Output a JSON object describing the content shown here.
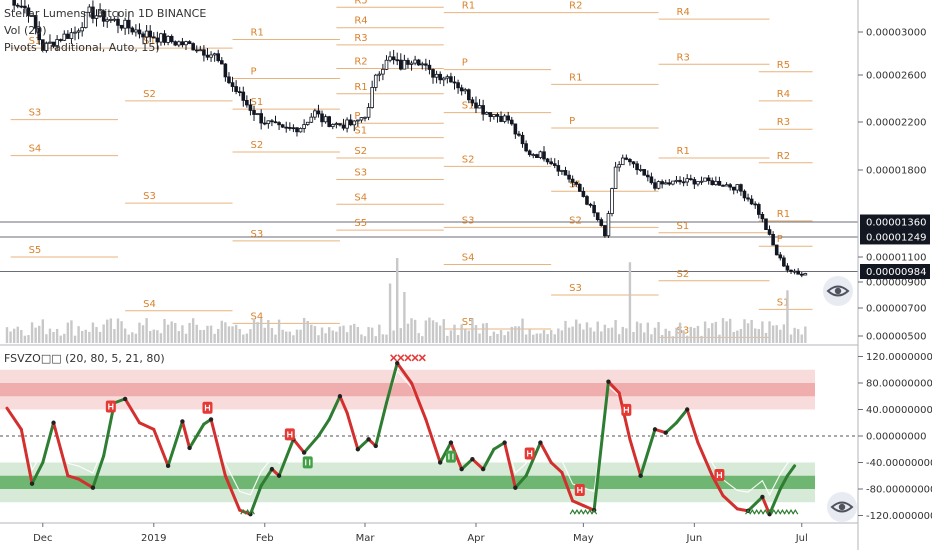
{
  "legend": {
    "line1": "Stellar Lumens / Bitcoin  1D  BINANCE",
    "line2": "Vol (20)",
    "line3": "Pivots (Traditional, Auto, 15)",
    "osc": "FSVZO□□ (20, 80, 5, 21, 80)"
  },
  "colors": {
    "up_candle": "#ffffff",
    "down_candle": "#131722",
    "pivot": "#d9822b",
    "volume": "#c8c8c8",
    "osc_up": "#2e7d32",
    "osc_down": "#d32f2f",
    "band_red": "#e57373",
    "band_green": "#43a047",
    "sell_tag": "#e53935",
    "buy_tag": "#43a047"
  },
  "icons": {
    "price_eye": "eye-icon",
    "osc_eye": "eye-icon"
  },
  "chart_data": [
    {
      "type": "candlestick",
      "title": "Stellar Lumens / Bitcoin",
      "interval": "1D",
      "exchange": "BINANCE",
      "x_labels": [
        "Dec",
        "2019",
        "Feb",
        "Mar",
        "Apr",
        "May",
        "Jun",
        "Jul"
      ],
      "y_ticks": [
        "0.00003000",
        "0.00002600",
        "0.00002200",
        "0.00001800",
        "0.00001100",
        "0.00000900",
        "0.00000700",
        "0.00000500"
      ],
      "price_tags": [
        {
          "label": "0.00001360",
          "value": 1.36e-05
        },
        {
          "label": "0.00001249",
          "value": 1.249e-05
        },
        {
          "label": "0.00000984",
          "value": 9.84e-06
        }
      ],
      "close_path": [
        {
          "d": 0,
          "c": 3.34e-05
        },
        {
          "d": 6,
          "c": 3.2e-05
        },
        {
          "d": 10,
          "c": 2.85e-05
        },
        {
          "d": 15,
          "c": 2.95e-05
        },
        {
          "d": 19,
          "c": 3e-05
        },
        {
          "d": 23,
          "c": 3.18e-05
        },
        {
          "d": 30,
          "c": 3.1e-05
        },
        {
          "d": 37,
          "c": 3e-05
        },
        {
          "d": 45,
          "c": 2.92e-05
        },
        {
          "d": 52,
          "c": 2.87e-05
        },
        {
          "d": 58,
          "c": 2.78e-05
        },
        {
          "d": 62,
          "c": 2.54e-05
        },
        {
          "d": 67,
          "c": 2.35e-05
        },
        {
          "d": 71,
          "c": 2.22e-05
        },
        {
          "d": 77,
          "c": 2.13e-05
        },
        {
          "d": 82,
          "c": 2.16e-05
        },
        {
          "d": 86,
          "c": 2.28e-05
        },
        {
          "d": 88,
          "c": 2.22e-05
        },
        {
          "d": 92,
          "c": 2.18e-05
        },
        {
          "d": 97,
          "c": 2.18e-05
        },
        {
          "d": 101,
          "c": 2.3e-05
        },
        {
          "d": 103,
          "c": 2.62e-05
        },
        {
          "d": 107,
          "c": 2.75e-05
        },
        {
          "d": 110,
          "c": 2.68e-05
        },
        {
          "d": 114,
          "c": 2.78e-05
        },
        {
          "d": 118,
          "c": 2.62e-05
        },
        {
          "d": 124,
          "c": 2.58e-05
        },
        {
          "d": 128,
          "c": 2.45e-05
        },
        {
          "d": 133,
          "c": 2.3e-05
        },
        {
          "d": 140,
          "c": 2.22e-05
        },
        {
          "d": 145,
          "c": 1.95e-05
        },
        {
          "d": 150,
          "c": 1.92e-05
        },
        {
          "d": 153,
          "c": 1.85e-05
        },
        {
          "d": 157,
          "c": 1.73e-05
        },
        {
          "d": 161,
          "c": 1.58e-05
        },
        {
          "d": 165,
          "c": 1.38e-05
        },
        {
          "d": 167,
          "c": 1.25e-05
        },
        {
          "d": 170,
          "c": 1.8e-05
        },
        {
          "d": 172,
          "c": 1.9e-05
        },
        {
          "d": 176,
          "c": 1.8e-05
        },
        {
          "d": 181,
          "c": 1.67e-05
        },
        {
          "d": 188,
          "c": 1.7e-05
        },
        {
          "d": 193,
          "c": 1.71e-05
        },
        {
          "d": 199,
          "c": 1.69e-05
        },
        {
          "d": 204,
          "c": 1.65e-05
        },
        {
          "d": 209,
          "c": 1.5e-05
        },
        {
          "d": 213,
          "c": 1.25e-05
        },
        {
          "d": 215,
          "c": 1.12e-05
        },
        {
          "d": 218,
          "c": 1e-05
        },
        {
          "d": 221,
          "c": 9.6e-06
        },
        {
          "d": 223,
          "c": 9.8e-06
        }
      ],
      "volume_spikes": [
        {
          "d": 109,
          "v": 1.0
        },
        {
          "d": 174,
          "v": 0.95
        },
        {
          "d": 218,
          "v": 0.62
        },
        {
          "d": 107,
          "v": 0.7
        },
        {
          "d": 111,
          "v": 0.6
        }
      ],
      "pivots": [
        {
          "label": "P",
          "price": 3.4e-05,
          "d1": 33,
          "d2": 63
        },
        {
          "label": "S1",
          "price": 2.85e-05,
          "d1": 1,
          "d2": 31
        },
        {
          "label": "S3",
          "price": 2.22e-05,
          "d1": 1,
          "d2": 31
        },
        {
          "label": "S4",
          "price": 1.92e-05,
          "d1": 1,
          "d2": 31
        },
        {
          "label": "S5",
          "price": 1.1e-05,
          "d1": 1,
          "d2": 31
        },
        {
          "label": "S1",
          "price": 2.85e-05,
          "d1": 33,
          "d2": 63
        },
        {
          "label": "S2",
          "price": 2.38e-05,
          "d1": 33,
          "d2": 63
        },
        {
          "label": "S3",
          "price": 1.52e-05,
          "d1": 33,
          "d2": 63
        },
        {
          "label": "S4",
          "price": 6.8e-06,
          "d1": 33,
          "d2": 63
        },
        {
          "label": "R1",
          "price": 2.93e-05,
          "d1": 63,
          "d2": 93
        },
        {
          "label": "P",
          "price": 2.57e-05,
          "d1": 63,
          "d2": 93
        },
        {
          "label": "S1",
          "price": 2.31e-05,
          "d1": 63,
          "d2": 93
        },
        {
          "label": "S2",
          "price": 1.95e-05,
          "d1": 63,
          "d2": 93
        },
        {
          "label": "S3",
          "price": 1.22e-05,
          "d1": 63,
          "d2": 93
        },
        {
          "label": "S4",
          "price": 5.9e-06,
          "d1": 63,
          "d2": 93
        },
        {
          "label": "R5",
          "price": 3.23e-05,
          "d1": 92,
          "d2": 122
        },
        {
          "label": "R4",
          "price": 3.04e-05,
          "d1": 92,
          "d2": 122
        },
        {
          "label": "R3",
          "price": 2.88e-05,
          "d1": 92,
          "d2": 122
        },
        {
          "label": "R2",
          "price": 2.66e-05,
          "d1": 92,
          "d2": 122
        },
        {
          "label": "R1",
          "price": 2.44e-05,
          "d1": 92,
          "d2": 122
        },
        {
          "label": "P",
          "price": 2.19e-05,
          "d1": 92,
          "d2": 122
        },
        {
          "label": "S1",
          "price": 2.07e-05,
          "d1": 92,
          "d2": 122
        },
        {
          "label": "S2",
          "price": 1.9e-05,
          "d1": 92,
          "d2": 122
        },
        {
          "label": "S3",
          "price": 1.72e-05,
          "d1": 92,
          "d2": 122
        },
        {
          "label": "S4",
          "price": 1.51e-05,
          "d1": 92,
          "d2": 122
        },
        {
          "label": "S5",
          "price": 1.3e-05,
          "d1": 92,
          "d2": 122
        },
        {
          "label": "R1",
          "price": 3.18e-05,
          "d1": 122,
          "d2": 152
        },
        {
          "label": "P",
          "price": 2.65e-05,
          "d1": 122,
          "d2": 152
        },
        {
          "label": "S1",
          "price": 2.28e-05,
          "d1": 122,
          "d2": 152
        },
        {
          "label": "S2",
          "price": 1.83e-05,
          "d1": 122,
          "d2": 152
        },
        {
          "label": "S3",
          "price": 1.32e-05,
          "d1": 122,
          "d2": 152
        },
        {
          "label": "S4",
          "price": 1.04e-05,
          "d1": 122,
          "d2": 152
        },
        {
          "label": "S5",
          "price": 5.5e-06,
          "d1": 122,
          "d2": 152
        },
        {
          "label": "R2",
          "price": 3.18e-05,
          "d1": 152,
          "d2": 182
        },
        {
          "label": "R1",
          "price": 2.52e-05,
          "d1": 152,
          "d2": 182
        },
        {
          "label": "P",
          "price": 2.15e-05,
          "d1": 152,
          "d2": 182
        },
        {
          "label": "S1",
          "price": 1.62e-05,
          "d1": 152,
          "d2": 182
        },
        {
          "label": "S2",
          "price": 1.32e-05,
          "d1": 152,
          "d2": 182
        },
        {
          "label": "S3",
          "price": 8e-06,
          "d1": 152,
          "d2": 182
        },
        {
          "label": "R4",
          "price": 3.12e-05,
          "d1": 182,
          "d2": 213
        },
        {
          "label": "R3",
          "price": 2.7e-05,
          "d1": 182,
          "d2": 213
        },
        {
          "label": "R1",
          "price": 1.9e-05,
          "d1": 182,
          "d2": 213
        },
        {
          "label": "S1",
          "price": 1.28e-05,
          "d1": 182,
          "d2": 213
        },
        {
          "label": "S2",
          "price": 9.1e-06,
          "d1": 182,
          "d2": 213
        },
        {
          "label": "S3",
          "price": 4.9e-06,
          "d1": 182,
          "d2": 213
        },
        {
          "label": "R5",
          "price": 2.63e-05,
          "d1": 210,
          "d2": 225
        },
        {
          "label": "R4",
          "price": 2.38e-05,
          "d1": 210,
          "d2": 225
        },
        {
          "label": "R3",
          "price": 2.14e-05,
          "d1": 210,
          "d2": 225
        },
        {
          "label": "R2",
          "price": 1.86e-05,
          "d1": 210,
          "d2": 225
        },
        {
          "label": "R1",
          "price": 1.37e-05,
          "d1": 210,
          "d2": 225
        },
        {
          "label": "P",
          "price": 1.18e-05,
          "d1": 210,
          "d2": 225
        },
        {
          "label": "S1",
          "price": 6.9e-06,
          "d1": 210,
          "d2": 225
        }
      ]
    },
    {
      "type": "line",
      "title": "FSVZO",
      "params": [
        20,
        80,
        5,
        21,
        80
      ],
      "y_ticks": [
        "120.00000000",
        "80.00000000",
        "40.00000000",
        "0.00000000",
        "-40.00000000",
        "-80.00000000",
        "-120.00000000"
      ],
      "ylim": [
        -122,
        125
      ],
      "levels": {
        "zero": 0,
        "ob_outer": [
          40,
          100
        ],
        "ob_inner": [
          60,
          80
        ],
        "os_outer": [
          -100,
          -40
        ],
        "os_inner": [
          -80,
          -60
        ]
      },
      "series": [
        {
          "points": [
            [
              0,
              42
            ],
            [
              4,
              10
            ],
            [
              7,
              -72
            ],
            [
              10,
              -40
            ],
            [
              13,
              20
            ],
            [
              15,
              -20
            ],
            [
              17,
              -60
            ],
            [
              20,
              -65
            ],
            [
              24,
              -78
            ],
            [
              27,
              -30
            ],
            [
              30,
              50
            ],
            [
              33,
              56
            ],
            [
              37,
              20
            ],
            [
              41,
              10
            ],
            [
              45,
              -45
            ],
            [
              49,
              22
            ],
            [
              51,
              -18
            ],
            [
              55,
              18
            ],
            [
              57,
              25
            ],
            [
              61,
              -60
            ],
            [
              65,
              -112
            ],
            [
              68,
              -118
            ],
            [
              71,
              -75
            ],
            [
              74,
              -50
            ],
            [
              76,
              -60
            ],
            [
              80,
              -5
            ],
            [
              83,
              -25
            ],
            [
              87,
              0
            ],
            [
              90,
              25
            ],
            [
              93,
              60
            ],
            [
              95,
              35
            ],
            [
              98,
              -20
            ],
            [
              101,
              -5
            ],
            [
              103,
              -15
            ],
            [
              106,
              50
            ],
            [
              109,
              110
            ],
            [
              113,
              80
            ],
            [
              117,
              25
            ],
            [
              121,
              -40
            ],
            [
              124,
              -10
            ],
            [
              127,
              -50
            ],
            [
              130,
              -35
            ],
            [
              133,
              -50
            ],
            [
              136,
              -20
            ],
            [
              139,
              -10
            ],
            [
              142,
              -78
            ],
            [
              145,
              -60
            ],
            [
              149,
              -10
            ],
            [
              152,
              -40
            ],
            [
              155,
              -55
            ],
            [
              158,
              -98
            ],
            [
              161,
              -105
            ],
            [
              164,
              -112
            ],
            [
              168,
              82
            ],
            [
              171,
              65
            ],
            [
              174,
              -5
            ],
            [
              177,
              -60
            ],
            [
              181,
              10
            ],
            [
              184,
              5
            ],
            [
              187,
              20
            ],
            [
              190,
              40
            ],
            [
              193,
              -10
            ],
            [
              197,
              -60
            ],
            [
              200,
              -90
            ],
            [
              204,
              -110
            ],
            [
              207,
              -113
            ],
            [
              211,
              -92
            ],
            [
              213,
              -118
            ],
            [
              216,
              -80
            ],
            [
              218,
              -60
            ],
            [
              220,
              -45
            ]
          ]
        }
      ],
      "sell_tags_d": [
        29,
        56,
        79,
        146,
        160,
        173,
        199
      ],
      "buy_tags_d": [
        84,
        124
      ],
      "hover_marks": {
        "d_start": 108,
        "d_end": 116,
        "level": 118
      }
    }
  ]
}
